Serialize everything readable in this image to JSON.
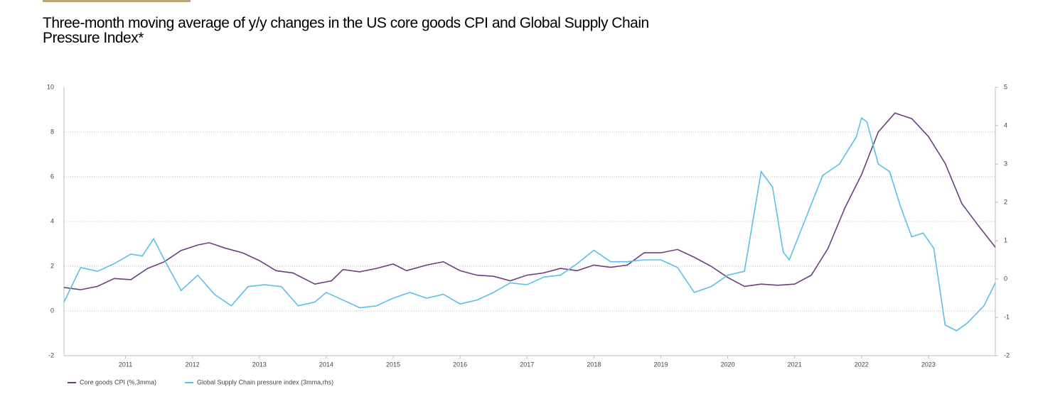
{
  "chart_data": {
    "type": "line",
    "title": "Three-month moving average of y/y changes in the US core goods CPI and Global Supply Chain Pressure Index*",
    "xlim": [
      2010.08,
      2024.0
    ],
    "xticks": [
      2011,
      2012,
      2013,
      2014,
      2015,
      2016,
      2017,
      2018,
      2019,
      2020,
      2021,
      2022,
      2023
    ],
    "ylim": [
      -2,
      10
    ],
    "yticks": [
      -2,
      0,
      2,
      4,
      6,
      8,
      10
    ],
    "y2lim": [
      -2,
      5
    ],
    "y2ticks": [
      -2,
      -1,
      0,
      1,
      2,
      3,
      4,
      5
    ],
    "grid": true,
    "legend": "bottom",
    "series": [
      {
        "name": "Core goods CPI (%,3mma)",
        "color": "#6b3f7f",
        "x": [
          2010.08,
          2010.33,
          2010.58,
          2010.83,
          2011.08,
          2011.33,
          2011.58,
          2011.83,
          2012.08,
          2012.25,
          2012.5,
          2012.75,
          2013.0,
          2013.25,
          2013.5,
          2013.83,
          2014.08,
          2014.25,
          2014.5,
          2014.75,
          2015.0,
          2015.2,
          2015.5,
          2015.75,
          2016.0,
          2016.25,
          2016.5,
          2016.75,
          2017.0,
          2017.25,
          2017.5,
          2017.75,
          2018.0,
          2018.25,
          2018.5,
          2018.75,
          2019.0,
          2019.25,
          2019.5,
          2019.75,
          2020.0,
          2020.25,
          2020.5,
          2020.75,
          2021.0,
          2021.25,
          2021.5,
          2021.75,
          2022.0,
          2022.25,
          2022.5,
          2022.75,
          2023.0,
          2023.25,
          2023.5,
          2023.75,
          2024.0
        ],
        "values": [
          1.05,
          0.95,
          1.1,
          1.45,
          1.4,
          1.9,
          2.2,
          2.7,
          2.95,
          3.05,
          2.8,
          2.6,
          2.25,
          1.8,
          1.7,
          1.2,
          1.35,
          1.85,
          1.75,
          1.9,
          2.1,
          1.8,
          2.05,
          2.2,
          1.8,
          1.6,
          1.55,
          1.35,
          1.6,
          1.7,
          1.9,
          1.8,
          2.05,
          1.95,
          2.05,
          2.6,
          2.6,
          2.75,
          2.4,
          2.0,
          1.5,
          1.1,
          1.2,
          1.15,
          1.2,
          1.6,
          2.8,
          4.6,
          6.1,
          8.0,
          8.85,
          8.6,
          7.8,
          6.6,
          4.8,
          3.8,
          2.85
        ]
      },
      {
        "name": "Global Supply Chain pressure index (3mma,rhs)",
        "color": "#5bc0e8",
        "axis": "y2",
        "x": [
          2010.08,
          2010.33,
          2010.58,
          2010.83,
          2011.08,
          2011.25,
          2011.42,
          2011.58,
          2011.83,
          2012.08,
          2012.33,
          2012.58,
          2012.83,
          2013.08,
          2013.33,
          2013.58,
          2013.83,
          2014.0,
          2014.25,
          2014.5,
          2014.75,
          2015.0,
          2015.25,
          2015.5,
          2015.75,
          2016.0,
          2016.25,
          2016.5,
          2016.75,
          2017.0,
          2017.25,
          2017.5,
          2017.75,
          2018.0,
          2018.25,
          2018.5,
          2018.75,
          2019.0,
          2019.25,
          2019.5,
          2019.75,
          2020.0,
          2020.25,
          2020.5,
          2020.67,
          2020.83,
          2020.92,
          2021.17,
          2021.42,
          2021.67,
          2021.92,
          2022.0,
          2022.08,
          2022.25,
          2022.42,
          2022.58,
          2022.75,
          2022.92,
          2023.08,
          2023.25,
          2023.42,
          2023.58,
          2023.83,
          2024.0
        ],
        "values": [
          -0.6,
          0.3,
          0.2,
          0.4,
          0.65,
          0.6,
          1.05,
          0.5,
          -0.3,
          0.1,
          -0.4,
          -0.7,
          -0.2,
          -0.15,
          -0.2,
          -0.7,
          -0.6,
          -0.35,
          -0.55,
          -0.75,
          -0.7,
          -0.5,
          -0.35,
          -0.5,
          -0.4,
          -0.65,
          -0.55,
          -0.35,
          -0.1,
          -0.15,
          0.05,
          0.1,
          0.4,
          0.75,
          0.45,
          0.45,
          0.5,
          0.5,
          0.3,
          -0.35,
          -0.2,
          0.1,
          0.2,
          2.8,
          2.4,
          0.7,
          0.5,
          1.6,
          2.7,
          3.0,
          3.7,
          4.2,
          4.1,
          3.0,
          2.8,
          1.9,
          1.1,
          1.2,
          0.8,
          -1.2,
          -1.35,
          -1.15,
          -0.7,
          -0.1
        ]
      }
    ]
  }
}
